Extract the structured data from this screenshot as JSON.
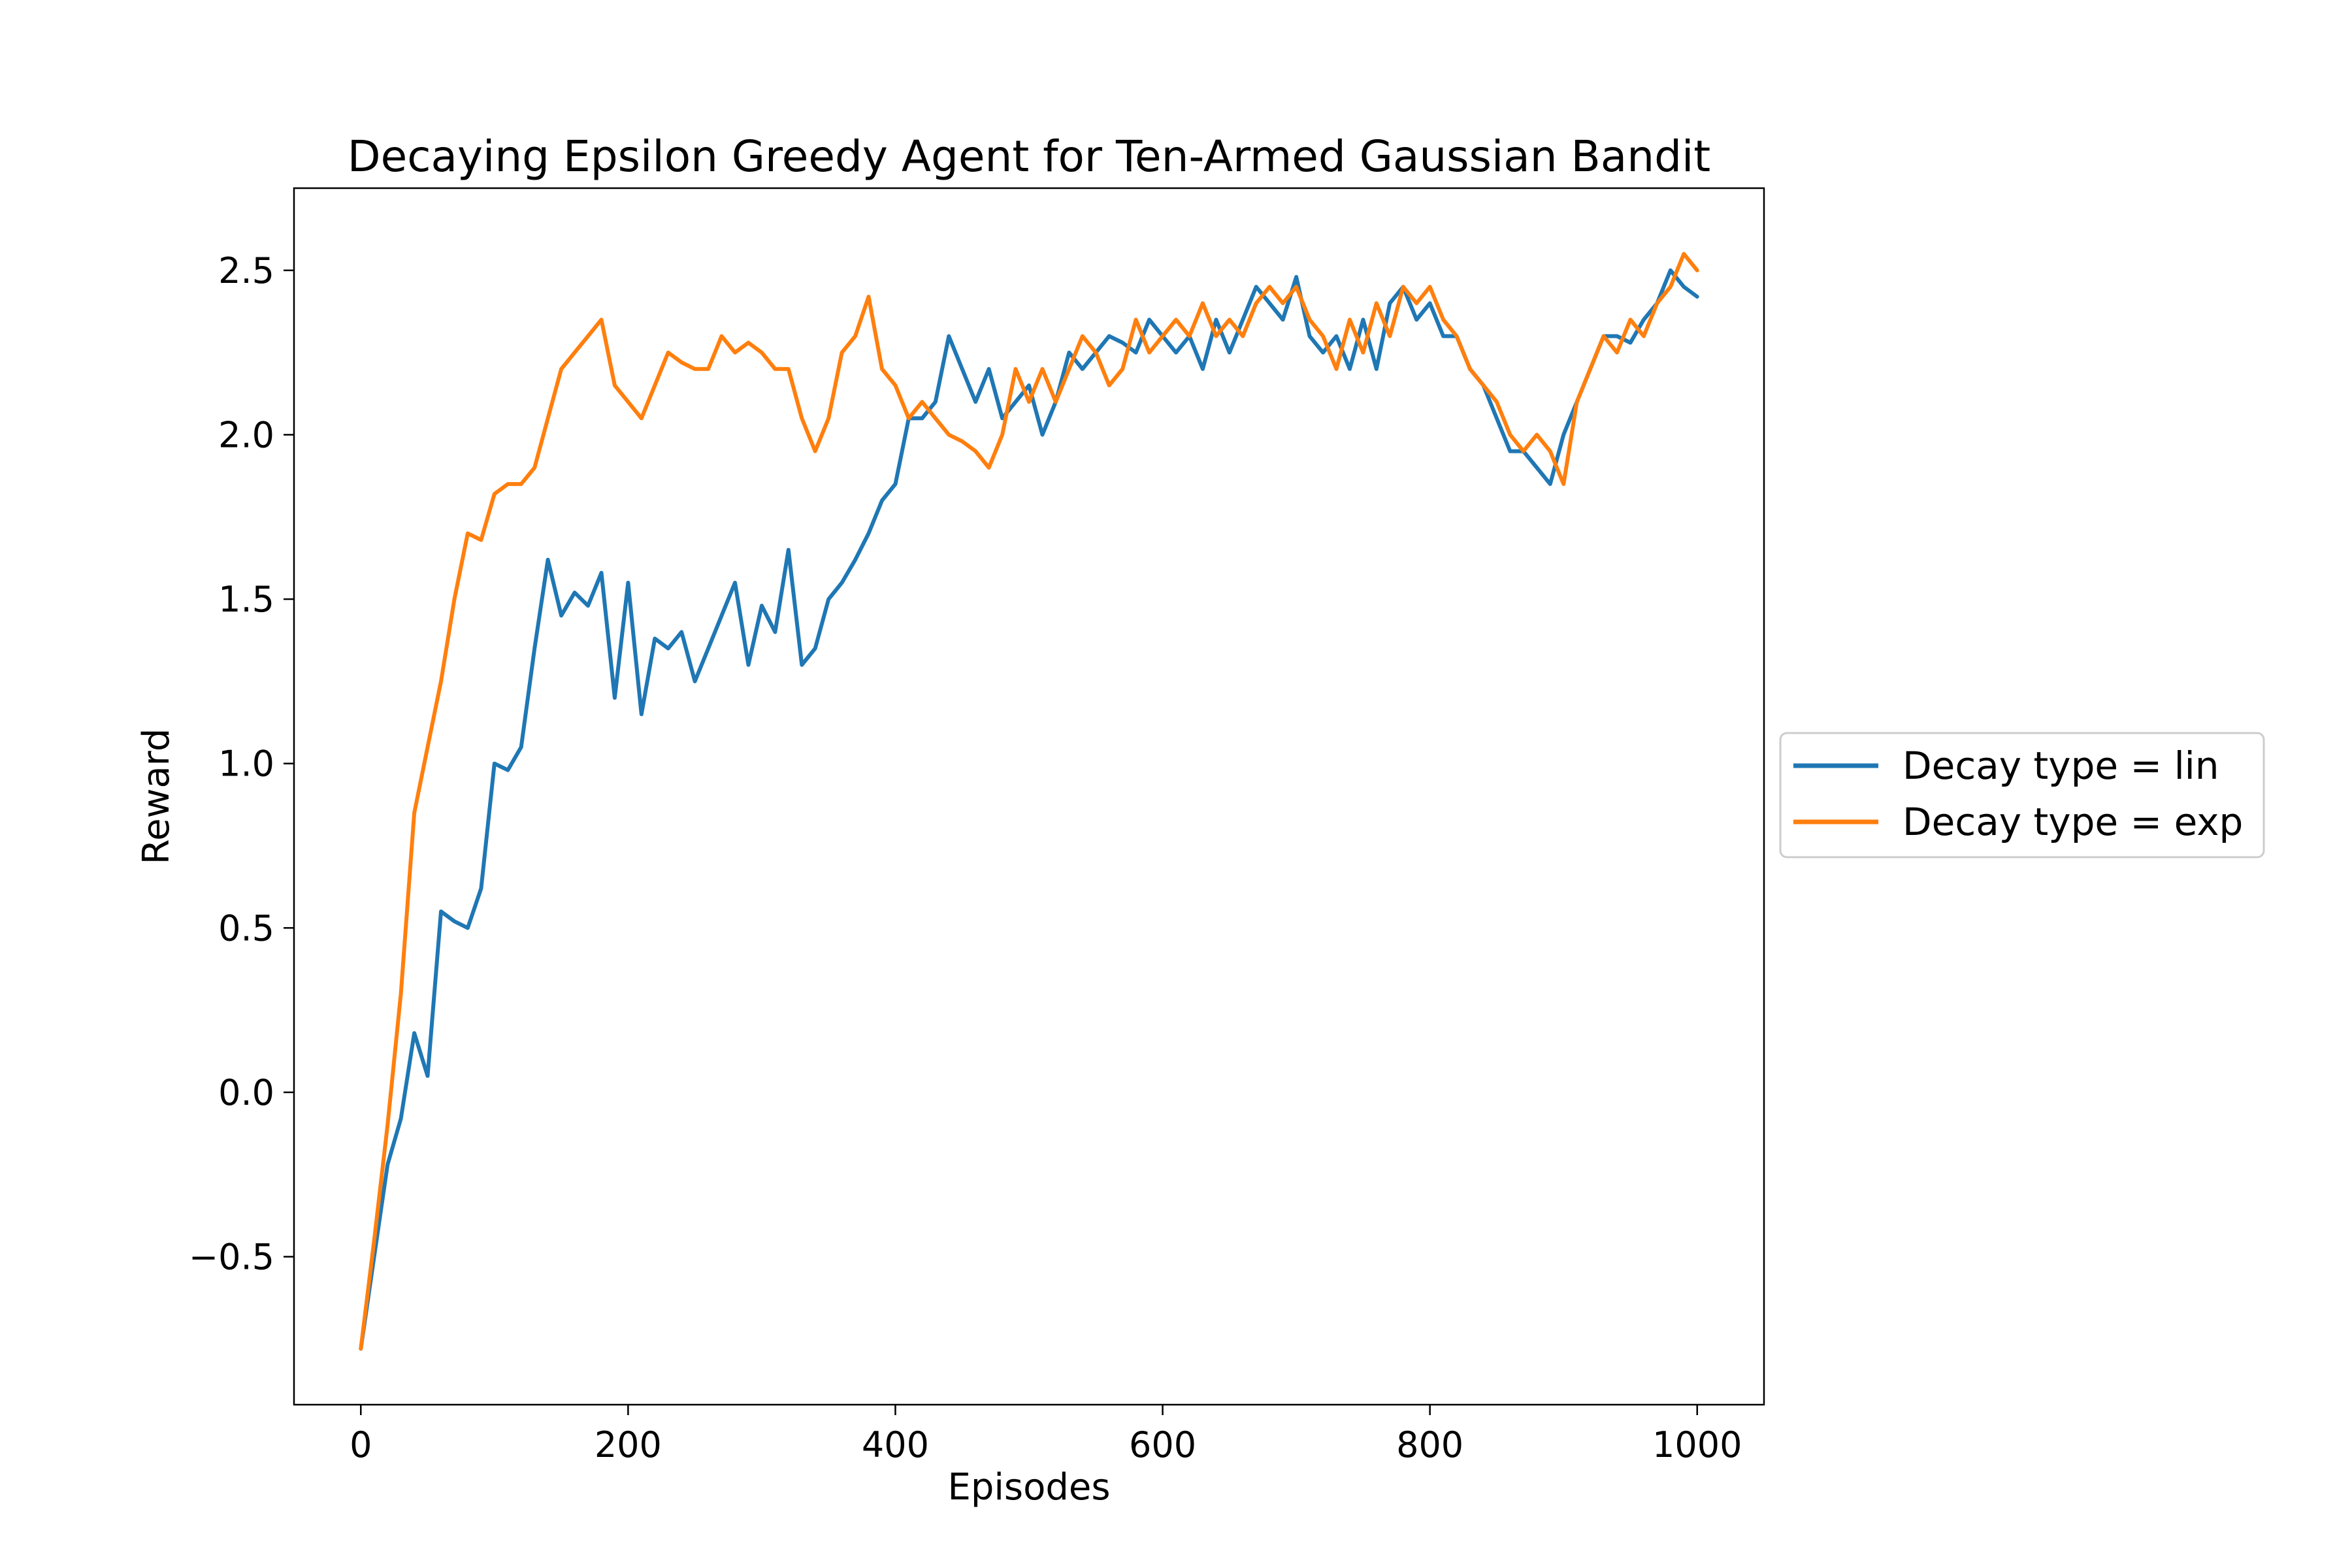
{
  "chart_data": {
    "type": "line",
    "title": "Decaying Epsilon Greedy Agent for Ten-Armed Gaussian Bandit",
    "xlabel": "Episodes",
    "ylabel": "Reward",
    "xlim": [
      -50,
      1050
    ],
    "ylim": [
      -0.95,
      2.75
    ],
    "x_ticks": [
      0,
      200,
      400,
      600,
      800,
      1000
    ],
    "x_tick_labels": [
      "0",
      "200",
      "400",
      "600",
      "800",
      "1000"
    ],
    "y_ticks": [
      -0.5,
      0.0,
      0.5,
      1.0,
      1.5,
      2.0,
      2.5
    ],
    "y_tick_labels": [
      "−0.5",
      "0.0",
      "0.5",
      "1.0",
      "1.5",
      "2.0",
      "2.5"
    ],
    "grid": false,
    "legend_position": "outside-right",
    "series": [
      {
        "name": "Decay type = lin",
        "color": "#1f77b4",
        "x": [
          0,
          10,
          20,
          30,
          40,
          50,
          60,
          70,
          80,
          90,
          100,
          110,
          120,
          130,
          140,
          150,
          160,
          170,
          180,
          190,
          200,
          210,
          220,
          230,
          240,
          250,
          260,
          270,
          280,
          290,
          300,
          310,
          320,
          330,
          340,
          350,
          360,
          370,
          380,
          390,
          400,
          410,
          420,
          430,
          440,
          450,
          460,
          470,
          480,
          490,
          500,
          510,
          520,
          530,
          540,
          550,
          560,
          570,
          580,
          590,
          600,
          610,
          620,
          630,
          640,
          650,
          660,
          670,
          680,
          690,
          700,
          710,
          720,
          730,
          740,
          750,
          760,
          770,
          780,
          790,
          800,
          810,
          820,
          830,
          840,
          850,
          860,
          870,
          880,
          890,
          900,
          910,
          920,
          930,
          940,
          950,
          960,
          970,
          980,
          990,
          1000
        ],
        "values": [
          -0.78,
          -0.5,
          -0.22,
          -0.08,
          0.18,
          0.05,
          0.55,
          0.52,
          0.5,
          0.62,
          1.0,
          0.98,
          1.05,
          1.35,
          1.62,
          1.45,
          1.52,
          1.48,
          1.58,
          1.2,
          1.55,
          1.15,
          1.38,
          1.35,
          1.4,
          1.25,
          1.35,
          1.45,
          1.55,
          1.3,
          1.48,
          1.4,
          1.65,
          1.3,
          1.35,
          1.5,
          1.55,
          1.62,
          1.7,
          1.8,
          1.85,
          2.05,
          2.05,
          2.1,
          2.3,
          2.2,
          2.1,
          2.2,
          2.05,
          2.1,
          2.15,
          2.0,
          2.1,
          2.25,
          2.2,
          2.25,
          2.3,
          2.28,
          2.25,
          2.35,
          2.3,
          2.25,
          2.3,
          2.2,
          2.35,
          2.25,
          2.35,
          2.45,
          2.4,
          2.35,
          2.48,
          2.3,
          2.25,
          2.3,
          2.2,
          2.35,
          2.2,
          2.4,
          2.45,
          2.35,
          2.4,
          2.3,
          2.3,
          2.2,
          2.15,
          2.05,
          1.95,
          1.95,
          1.9,
          1.85,
          2.0,
          2.1,
          2.2,
          2.3,
          2.3,
          2.28,
          2.35,
          2.4,
          2.5,
          2.45,
          2.42
        ]
      },
      {
        "name": "Decay type = exp",
        "color": "#ff7f0e",
        "x": [
          0,
          10,
          20,
          30,
          40,
          50,
          60,
          70,
          80,
          90,
          100,
          110,
          120,
          130,
          140,
          150,
          160,
          170,
          180,
          190,
          200,
          210,
          220,
          230,
          240,
          250,
          260,
          270,
          280,
          290,
          300,
          310,
          320,
          330,
          340,
          350,
          360,
          370,
          380,
          390,
          400,
          410,
          420,
          430,
          440,
          450,
          460,
          470,
          480,
          490,
          500,
          510,
          520,
          530,
          540,
          550,
          560,
          570,
          580,
          590,
          600,
          610,
          620,
          630,
          640,
          650,
          660,
          670,
          680,
          690,
          700,
          710,
          720,
          730,
          740,
          750,
          760,
          770,
          780,
          790,
          800,
          810,
          820,
          830,
          840,
          850,
          860,
          870,
          880,
          890,
          900,
          910,
          920,
          930,
          940,
          950,
          960,
          970,
          980,
          990,
          1000
        ],
        "values": [
          -0.78,
          -0.45,
          -0.1,
          0.3,
          0.85,
          1.05,
          1.25,
          1.5,
          1.7,
          1.68,
          1.82,
          1.85,
          1.85,
          1.9,
          2.05,
          2.2,
          2.25,
          2.3,
          2.35,
          2.15,
          2.1,
          2.05,
          2.15,
          2.25,
          2.22,
          2.2,
          2.2,
          2.3,
          2.25,
          2.28,
          2.25,
          2.2,
          2.2,
          2.05,
          1.95,
          2.05,
          2.25,
          2.3,
          2.42,
          2.2,
          2.15,
          2.05,
          2.1,
          2.05,
          2.0,
          1.98,
          1.95,
          1.9,
          2.0,
          2.2,
          2.1,
          2.2,
          2.1,
          2.2,
          2.3,
          2.25,
          2.15,
          2.2,
          2.35,
          2.25,
          2.3,
          2.35,
          2.3,
          2.4,
          2.3,
          2.35,
          2.3,
          2.4,
          2.45,
          2.4,
          2.45,
          2.35,
          2.3,
          2.2,
          2.35,
          2.25,
          2.4,
          2.3,
          2.45,
          2.4,
          2.45,
          2.35,
          2.3,
          2.2,
          2.15,
          2.1,
          2.0,
          1.95,
          2.0,
          1.95,
          1.85,
          2.1,
          2.2,
          2.3,
          2.25,
          2.35,
          2.3,
          2.4,
          2.45,
          2.55,
          2.5
        ]
      }
    ]
  }
}
